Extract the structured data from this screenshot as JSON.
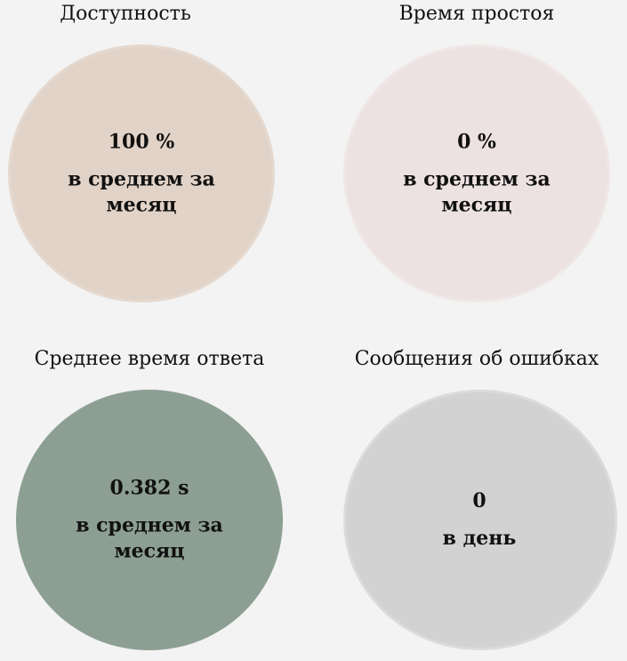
{
  "metrics": [
    {
      "title": "Доступность",
      "value": "100 %",
      "caption": "в среднем за месяц",
      "color": "#e2d3c8"
    },
    {
      "title": "Время простоя",
      "value": "0 %",
      "caption": "в среднем за месяц",
      "color": "#ede2e2"
    },
    {
      "title": "Среднее время ответа",
      "value": "0.382 s",
      "caption": "в среднем за месяц",
      "color": "#8d9f93"
    },
    {
      "title": "Сообщения об ошибках",
      "value": "0",
      "caption": "в день",
      "color": "#d2d2d2"
    }
  ]
}
